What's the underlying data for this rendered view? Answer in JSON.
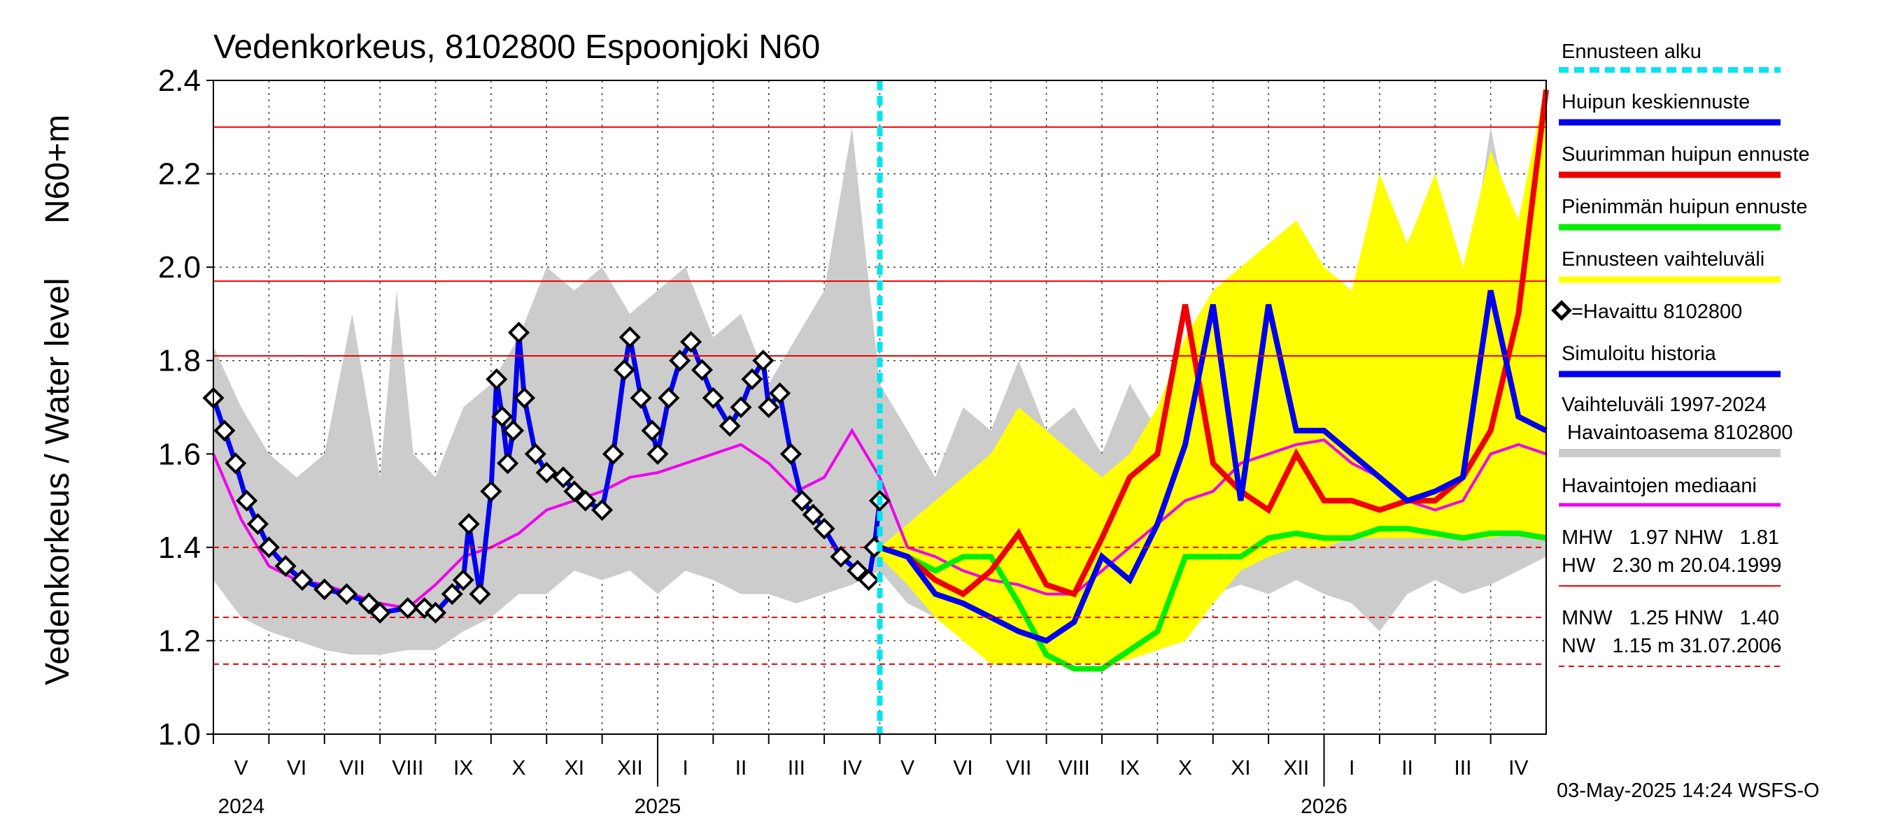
{
  "chart_data": {
    "type": "line",
    "title": "Vedenkorkeus, 8102800 Espoonjoki N60",
    "ylabel_left": "Vedenkorkeus / Water level",
    "ylabel_right": "N60+m",
    "ylim": [
      1.0,
      2.4
    ],
    "yticks": [
      "1.0",
      "1.2",
      "1.4",
      "1.6",
      "1.8",
      "2.0",
      "2.2",
      "2.4"
    ],
    "months": [
      "V",
      "VI",
      "VII",
      "VIII",
      "IX",
      "X",
      "XI",
      "XII",
      "I",
      "II",
      "III",
      "IV",
      "V",
      "VI",
      "VII",
      "VIII",
      "IX",
      "X",
      "XI",
      "XII",
      "I",
      "II",
      "III",
      "IV"
    ],
    "years": [
      "2024",
      "2025",
      "2026"
    ],
    "forecast_start_month_index": 12,
    "reference_lines": [
      {
        "name": "HW",
        "value": 2.3,
        "style": "solid"
      },
      {
        "name": "MHW",
        "value": 1.97,
        "style": "solid"
      },
      {
        "name": "NHW",
        "value": 1.81,
        "style": "solid"
      },
      {
        "name": "HNW",
        "value": 1.4,
        "style": "dashed"
      },
      {
        "name": "MNW",
        "value": 1.25,
        "style": "dashed"
      },
      {
        "name": "NW",
        "value": 1.15,
        "style": "dashed"
      }
    ],
    "legend": [
      {
        "label": "Ennusteen alku",
        "color": "#00e5ee",
        "style": "dotted"
      },
      {
        "label": "Huipun keskiennuste",
        "color": "#0000ee",
        "style": "solid"
      },
      {
        "label": "Suurimman huipun ennuste",
        "color": "#ee0000",
        "style": "solid"
      },
      {
        "label": "Pienimmän huipun ennuste",
        "color": "#00ee00",
        "style": "solid"
      },
      {
        "label": "Ennusteen vaihteluväli",
        "color": "#ffff00",
        "style": "solid"
      },
      {
        "label": "=Havaittu 8102800",
        "color": "#000000",
        "style": "marker"
      },
      {
        "label": "Simuloitu historia",
        "color": "#0000ee",
        "style": "solid"
      },
      {
        "label": "Vaihteluväli 1997-2024",
        "color": "#cccccc",
        "style": "none"
      },
      {
        "label": "Havaintoasema 8102800",
        "color": "#cccccc",
        "style": "solid"
      },
      {
        "label": "Havaintojen mediaani",
        "color": "#ee00ee",
        "style": "solid"
      }
    ],
    "stats": {
      "line1": "MHW   1.97 NHW   1.81",
      "line2": "HW   2.30 m 20.04.1999",
      "line3": "MNW   1.25 HNW   1.40",
      "line4": "NW   1.15 m 31.07.2006"
    },
    "timestamp": "03-May-2025 14:24 WSFS-O",
    "colors": {
      "hist_band": "#cccccc",
      "forecast_band": "#ffff00",
      "mean": "#0000ee",
      "max": "#ee0000",
      "min": "#00ee00",
      "median": "#ee00ee",
      "refline": "#ee0000",
      "forecast_start": "#00e5ee"
    },
    "series": {
      "hist_upper": [
        [
          0,
          1.83
        ],
        [
          0.5,
          1.7
        ],
        [
          1,
          1.6
        ],
        [
          1.5,
          1.55
        ],
        [
          2,
          1.6
        ],
        [
          2.5,
          1.9
        ],
        [
          3,
          1.55
        ],
        [
          3.3,
          1.95
        ],
        [
          3.6,
          1.6
        ],
        [
          4,
          1.55
        ],
        [
          4.5,
          1.7
        ],
        [
          5,
          1.75
        ],
        [
          5.5,
          1.85
        ],
        [
          6,
          2.0
        ],
        [
          6.5,
          1.95
        ],
        [
          7,
          2.0
        ],
        [
          7.5,
          1.9
        ],
        [
          8,
          1.95
        ],
        [
          8.5,
          2.0
        ],
        [
          9,
          1.85
        ],
        [
          9.5,
          1.9
        ],
        [
          10,
          1.75
        ],
        [
          10.5,
          1.85
        ],
        [
          11,
          1.95
        ],
        [
          11.5,
          2.3
        ],
        [
          12,
          1.75
        ],
        [
          12.5,
          1.65
        ],
        [
          13,
          1.55
        ],
        [
          13.5,
          1.7
        ],
        [
          14,
          1.65
        ],
        [
          14.5,
          1.8
        ],
        [
          15,
          1.65
        ],
        [
          15.5,
          1.7
        ],
        [
          16,
          1.6
        ],
        [
          16.5,
          1.75
        ],
        [
          17,
          1.65
        ],
        [
          17.5,
          1.6
        ],
        [
          18,
          1.7
        ],
        [
          18.5,
          1.75
        ],
        [
          19,
          1.75
        ],
        [
          19.5,
          1.8
        ],
        [
          20,
          1.75
        ],
        [
          20.5,
          1.8
        ],
        [
          21,
          1.75
        ],
        [
          21.5,
          1.8
        ],
        [
          22,
          1.75
        ],
        [
          22.5,
          1.9
        ],
        [
          23,
          2.3
        ],
        [
          23.5,
          2.0
        ],
        [
          24,
          1.75
        ]
      ],
      "hist_lower": [
        [
          0,
          1.33
        ],
        [
          0.5,
          1.25
        ],
        [
          1,
          1.22
        ],
        [
          1.5,
          1.2
        ],
        [
          2,
          1.18
        ],
        [
          2.5,
          1.17
        ],
        [
          3,
          1.17
        ],
        [
          3.5,
          1.18
        ],
        [
          4,
          1.18
        ],
        [
          4.5,
          1.22
        ],
        [
          5,
          1.25
        ],
        [
          5.5,
          1.3
        ],
        [
          6,
          1.3
        ],
        [
          6.5,
          1.35
        ],
        [
          7,
          1.33
        ],
        [
          7.5,
          1.35
        ],
        [
          8,
          1.3
        ],
        [
          8.5,
          1.35
        ],
        [
          9,
          1.33
        ],
        [
          9.5,
          1.3
        ],
        [
          10,
          1.3
        ],
        [
          10.5,
          1.28
        ],
        [
          11,
          1.3
        ],
        [
          11.5,
          1.32
        ],
        [
          12,
          1.35
        ],
        [
          12.5,
          1.28
        ],
        [
          13,
          1.25
        ],
        [
          13.5,
          1.22
        ],
        [
          14,
          1.2
        ],
        [
          14.5,
          1.18
        ],
        [
          15,
          1.17
        ],
        [
          15.5,
          1.18
        ],
        [
          16,
          1.2
        ],
        [
          16.5,
          1.22
        ],
        [
          17,
          1.25
        ],
        [
          17.5,
          1.28
        ],
        [
          18,
          1.3
        ],
        [
          18.5,
          1.32
        ],
        [
          19,
          1.3
        ],
        [
          19.5,
          1.33
        ],
        [
          20,
          1.3
        ],
        [
          20.5,
          1.28
        ],
        [
          21,
          1.22
        ],
        [
          21.5,
          1.3
        ],
        [
          22,
          1.33
        ],
        [
          22.5,
          1.3
        ],
        [
          23,
          1.32
        ],
        [
          23.5,
          1.35
        ],
        [
          24,
          1.38
        ]
      ],
      "forecast_upper": [
        [
          12,
          1.4
        ],
        [
          12.5,
          1.45
        ],
        [
          13,
          1.5
        ],
        [
          13.5,
          1.55
        ],
        [
          14,
          1.6
        ],
        [
          14.5,
          1.7
        ],
        [
          15,
          1.65
        ],
        [
          15.5,
          1.6
        ],
        [
          16,
          1.55
        ],
        [
          16.5,
          1.6
        ],
        [
          17,
          1.7
        ],
        [
          17.5,
          1.85
        ],
        [
          18,
          1.95
        ],
        [
          18.5,
          2.0
        ],
        [
          19,
          2.05
        ],
        [
          19.5,
          2.1
        ],
        [
          20,
          2.0
        ],
        [
          20.5,
          1.95
        ],
        [
          21,
          2.2
        ],
        [
          21.5,
          2.05
        ],
        [
          22,
          2.2
        ],
        [
          22.5,
          2.0
        ],
        [
          23,
          2.25
        ],
        [
          23.5,
          2.1
        ],
        [
          24,
          2.4
        ]
      ],
      "forecast_lower": [
        [
          12,
          1.38
        ],
        [
          12.5,
          1.32
        ],
        [
          13,
          1.25
        ],
        [
          13.5,
          1.2
        ],
        [
          14,
          1.15
        ],
        [
          14.5,
          1.15
        ],
        [
          15,
          1.15
        ],
        [
          15.5,
          1.15
        ],
        [
          16,
          1.15
        ],
        [
          16.5,
          1.16
        ],
        [
          17,
          1.18
        ],
        [
          17.5,
          1.2
        ],
        [
          18,
          1.28
        ],
        [
          18.5,
          1.35
        ],
        [
          19,
          1.38
        ],
        [
          19.5,
          1.4
        ],
        [
          20,
          1.4
        ],
        [
          20.5,
          1.42
        ],
        [
          21,
          1.42
        ],
        [
          21.5,
          1.42
        ],
        [
          22,
          1.42
        ],
        [
          22.5,
          1.42
        ],
        [
          23,
          1.42
        ],
        [
          23.5,
          1.43
        ],
        [
          24,
          1.42
        ]
      ],
      "observed": [
        [
          0,
          1.72
        ],
        [
          0.2,
          1.65
        ],
        [
          0.4,
          1.58
        ],
        [
          0.6,
          1.5
        ],
        [
          0.8,
          1.45
        ],
        [
          1,
          1.4
        ],
        [
          1.3,
          1.36
        ],
        [
          1.6,
          1.33
        ],
        [
          2,
          1.31
        ],
        [
          2.4,
          1.3
        ],
        [
          2.8,
          1.28
        ],
        [
          3,
          1.26
        ],
        [
          3.5,
          1.27
        ],
        [
          3.8,
          1.27
        ],
        [
          4,
          1.26
        ],
        [
          4.3,
          1.3
        ],
        [
          4.5,
          1.33
        ],
        [
          4.6,
          1.45
        ],
        [
          4.8,
          1.3
        ],
        [
          5,
          1.52
        ],
        [
          5.1,
          1.76
        ],
        [
          5.2,
          1.68
        ],
        [
          5.3,
          1.58
        ],
        [
          5.4,
          1.65
        ],
        [
          5.5,
          1.86
        ],
        [
          5.6,
          1.72
        ],
        [
          5.8,
          1.6
        ],
        [
          6,
          1.56
        ],
        [
          6.3,
          1.55
        ],
        [
          6.5,
          1.52
        ],
        [
          6.7,
          1.5
        ],
        [
          7,
          1.48
        ],
        [
          7.2,
          1.6
        ],
        [
          7.4,
          1.78
        ],
        [
          7.5,
          1.85
        ],
        [
          7.7,
          1.72
        ],
        [
          7.9,
          1.65
        ],
        [
          8,
          1.6
        ],
        [
          8.2,
          1.72
        ],
        [
          8.4,
          1.8
        ],
        [
          8.6,
          1.84
        ],
        [
          8.8,
          1.78
        ],
        [
          9,
          1.72
        ],
        [
          9.3,
          1.66
        ],
        [
          9.5,
          1.7
        ],
        [
          9.7,
          1.76
        ],
        [
          9.9,
          1.8
        ],
        [
          10,
          1.7
        ],
        [
          10.2,
          1.73
        ],
        [
          10.4,
          1.6
        ],
        [
          10.6,
          1.5
        ],
        [
          10.8,
          1.47
        ],
        [
          11,
          1.44
        ],
        [
          11.3,
          1.38
        ],
        [
          11.6,
          1.35
        ],
        [
          11.8,
          1.33
        ],
        [
          11.9,
          1.4
        ],
        [
          12,
          1.5
        ]
      ],
      "mean": [
        [
          12,
          1.4
        ],
        [
          12.5,
          1.38
        ],
        [
          13,
          1.3
        ],
        [
          13.5,
          1.28
        ],
        [
          14,
          1.25
        ],
        [
          14.5,
          1.22
        ],
        [
          15,
          1.2
        ],
        [
          15.5,
          1.24
        ],
        [
          16,
          1.38
        ],
        [
          16.5,
          1.33
        ],
        [
          17,
          1.45
        ],
        [
          17.5,
          1.62
        ],
        [
          18,
          1.92
        ],
        [
          18.5,
          1.5
        ],
        [
          19,
          1.92
        ],
        [
          19.5,
          1.65
        ],
        [
          20,
          1.65
        ],
        [
          20.5,
          1.6
        ],
        [
          21,
          1.55
        ],
        [
          21.5,
          1.5
        ],
        [
          22,
          1.52
        ],
        [
          22.5,
          1.55
        ],
        [
          23,
          1.95
        ],
        [
          23.5,
          1.68
        ],
        [
          24,
          1.65
        ]
      ],
      "max": [
        [
          12,
          1.4
        ],
        [
          12.5,
          1.38
        ],
        [
          13,
          1.33
        ],
        [
          13.5,
          1.3
        ],
        [
          14,
          1.35
        ],
        [
          14.5,
          1.43
        ],
        [
          15,
          1.32
        ],
        [
          15.5,
          1.3
        ],
        [
          16,
          1.42
        ],
        [
          16.5,
          1.55
        ],
        [
          17,
          1.6
        ],
        [
          17.5,
          1.92
        ],
        [
          18,
          1.58
        ],
        [
          18.5,
          1.52
        ],
        [
          19,
          1.48
        ],
        [
          19.5,
          1.6
        ],
        [
          20,
          1.5
        ],
        [
          20.5,
          1.5
        ],
        [
          21,
          1.48
        ],
        [
          21.5,
          1.5
        ],
        [
          22,
          1.5
        ],
        [
          22.5,
          1.55
        ],
        [
          23,
          1.65
        ],
        [
          23.5,
          1.9
        ],
        [
          24,
          2.38
        ]
      ],
      "min": [
        [
          12,
          1.4
        ],
        [
          12.5,
          1.38
        ],
        [
          13,
          1.35
        ],
        [
          13.5,
          1.38
        ],
        [
          14,
          1.38
        ],
        [
          14.5,
          1.28
        ],
        [
          15,
          1.17
        ],
        [
          15.5,
          1.14
        ],
        [
          16,
          1.14
        ],
        [
          16.5,
          1.18
        ],
        [
          17,
          1.22
        ],
        [
          17.5,
          1.38
        ],
        [
          18,
          1.38
        ],
        [
          18.5,
          1.38
        ],
        [
          19,
          1.42
        ],
        [
          19.5,
          1.43
        ],
        [
          20,
          1.42
        ],
        [
          20.5,
          1.42
        ],
        [
          21,
          1.44
        ],
        [
          21.5,
          1.44
        ],
        [
          22,
          1.43
        ],
        [
          22.5,
          1.42
        ],
        [
          23,
          1.43
        ],
        [
          23.5,
          1.43
        ],
        [
          24,
          1.42
        ]
      ],
      "median": [
        [
          0,
          1.6
        ],
        [
          0.5,
          1.46
        ],
        [
          1,
          1.36
        ],
        [
          1.5,
          1.33
        ],
        [
          2,
          1.32
        ],
        [
          2.5,
          1.3
        ],
        [
          3,
          1.28
        ],
        [
          3.5,
          1.27
        ],
        [
          4,
          1.32
        ],
        [
          4.5,
          1.38
        ],
        [
          5,
          1.4
        ],
        [
          5.5,
          1.43
        ],
        [
          6,
          1.48
        ],
        [
          6.5,
          1.5
        ],
        [
          7,
          1.52
        ],
        [
          7.5,
          1.55
        ],
        [
          8,
          1.56
        ],
        [
          8.5,
          1.58
        ],
        [
          9,
          1.6
        ],
        [
          9.5,
          1.62
        ],
        [
          10,
          1.58
        ],
        [
          10.5,
          1.52
        ],
        [
          11,
          1.55
        ],
        [
          11.5,
          1.65
        ],
        [
          12,
          1.55
        ],
        [
          12.5,
          1.4
        ],
        [
          13,
          1.38
        ],
        [
          13.5,
          1.35
        ],
        [
          14,
          1.33
        ],
        [
          14.5,
          1.32
        ],
        [
          15,
          1.3
        ],
        [
          15.5,
          1.3
        ],
        [
          16,
          1.35
        ],
        [
          16.5,
          1.4
        ],
        [
          17,
          1.45
        ],
        [
          17.5,
          1.5
        ],
        [
          18,
          1.52
        ],
        [
          18.5,
          1.58
        ],
        [
          19,
          1.6
        ],
        [
          19.5,
          1.62
        ],
        [
          20,
          1.63
        ],
        [
          20.5,
          1.58
        ],
        [
          21,
          1.55
        ],
        [
          21.5,
          1.5
        ],
        [
          22,
          1.48
        ],
        [
          22.5,
          1.5
        ],
        [
          23,
          1.6
        ],
        [
          23.5,
          1.62
        ],
        [
          24,
          1.6
        ]
      ]
    }
  }
}
